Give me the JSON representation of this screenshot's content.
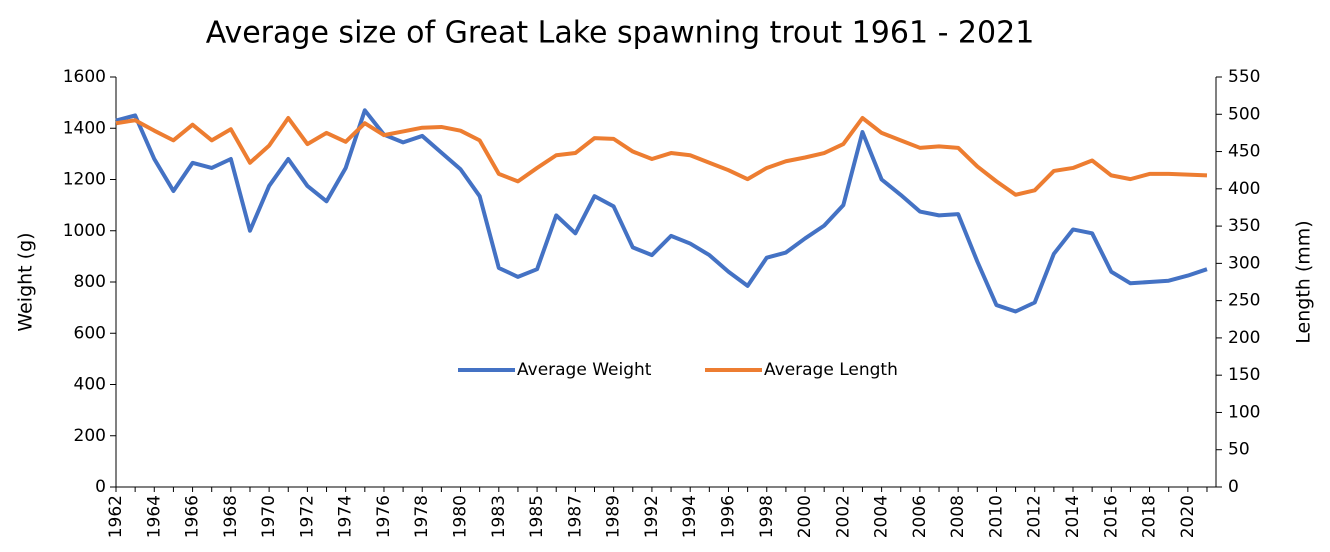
{
  "chart_data": {
    "type": "line",
    "title": "Average size of Great Lake spawning trout 1961 - 2021",
    "y_label": "Weight (g)",
    "y2_label": "Length (mm)",
    "categories": [
      "1962",
      null,
      "1964",
      null,
      "1966",
      null,
      "1968",
      null,
      "1970",
      null,
      "1972",
      null,
      "1974",
      null,
      "1976",
      null,
      "1978",
      null,
      "1980",
      null,
      "1983",
      null,
      "1985",
      null,
      "1987",
      null,
      "1989",
      null,
      "1992",
      null,
      "1994",
      null,
      "1996",
      null,
      "1998",
      null,
      "2000",
      null,
      "2002",
      null,
      "2004",
      null,
      "2006",
      null,
      "2008",
      null,
      "2010",
      null,
      "2012",
      null,
      "2014",
      null,
      "2016",
      null,
      "2018",
      null,
      "2020",
      null
    ],
    "series": [
      {
        "name": "Average Weight",
        "color": "#4472c4",
        "axis": "y",
        "values": [
          1430,
          1450,
          1280,
          1155,
          1265,
          1245,
          1280,
          1000,
          1175,
          1280,
          1175,
          1115,
          1245,
          1470,
          1375,
          1345,
          1370,
          1305,
          1240,
          1135,
          855,
          820,
          850,
          1060,
          990,
          1135,
          1095,
          935,
          905,
          980,
          950,
          905,
          840,
          785,
          895,
          915,
          970,
          1020,
          1100,
          1385,
          1200,
          1140,
          1075,
          1060,
          1065,
          880,
          710,
          685,
          720,
          910,
          1005,
          990,
          840,
          795,
          800,
          805,
          825,
          850
        ]
      },
      {
        "name": "Average Length",
        "color": "#ed7d31",
        "axis": "y2",
        "values": [
          488,
          492,
          478,
          465,
          486,
          465,
          480,
          435,
          458,
          495,
          460,
          475,
          463,
          488,
          472,
          477,
          482,
          483,
          478,
          465,
          420,
          410,
          428,
          445,
          448,
          468,
          467,
          450,
          440,
          448,
          445,
          435,
          425,
          413,
          428,
          437,
          442,
          448,
          460,
          495,
          475,
          465,
          455,
          457,
          455,
          430,
          410,
          392,
          398,
          424,
          428,
          438,
          418,
          413,
          420,
          420,
          419,
          418
        ]
      }
    ],
    "ylim": [
      0,
      1600
    ],
    "yticks": [
      0,
      200,
      400,
      600,
      800,
      1000,
      1200,
      1400,
      1600
    ],
    "y2lim": [
      0,
      550
    ],
    "y2ticks": [
      0,
      50,
      100,
      150,
      200,
      250,
      300,
      350,
      400,
      450,
      500,
      550
    ],
    "legend": "center"
  }
}
